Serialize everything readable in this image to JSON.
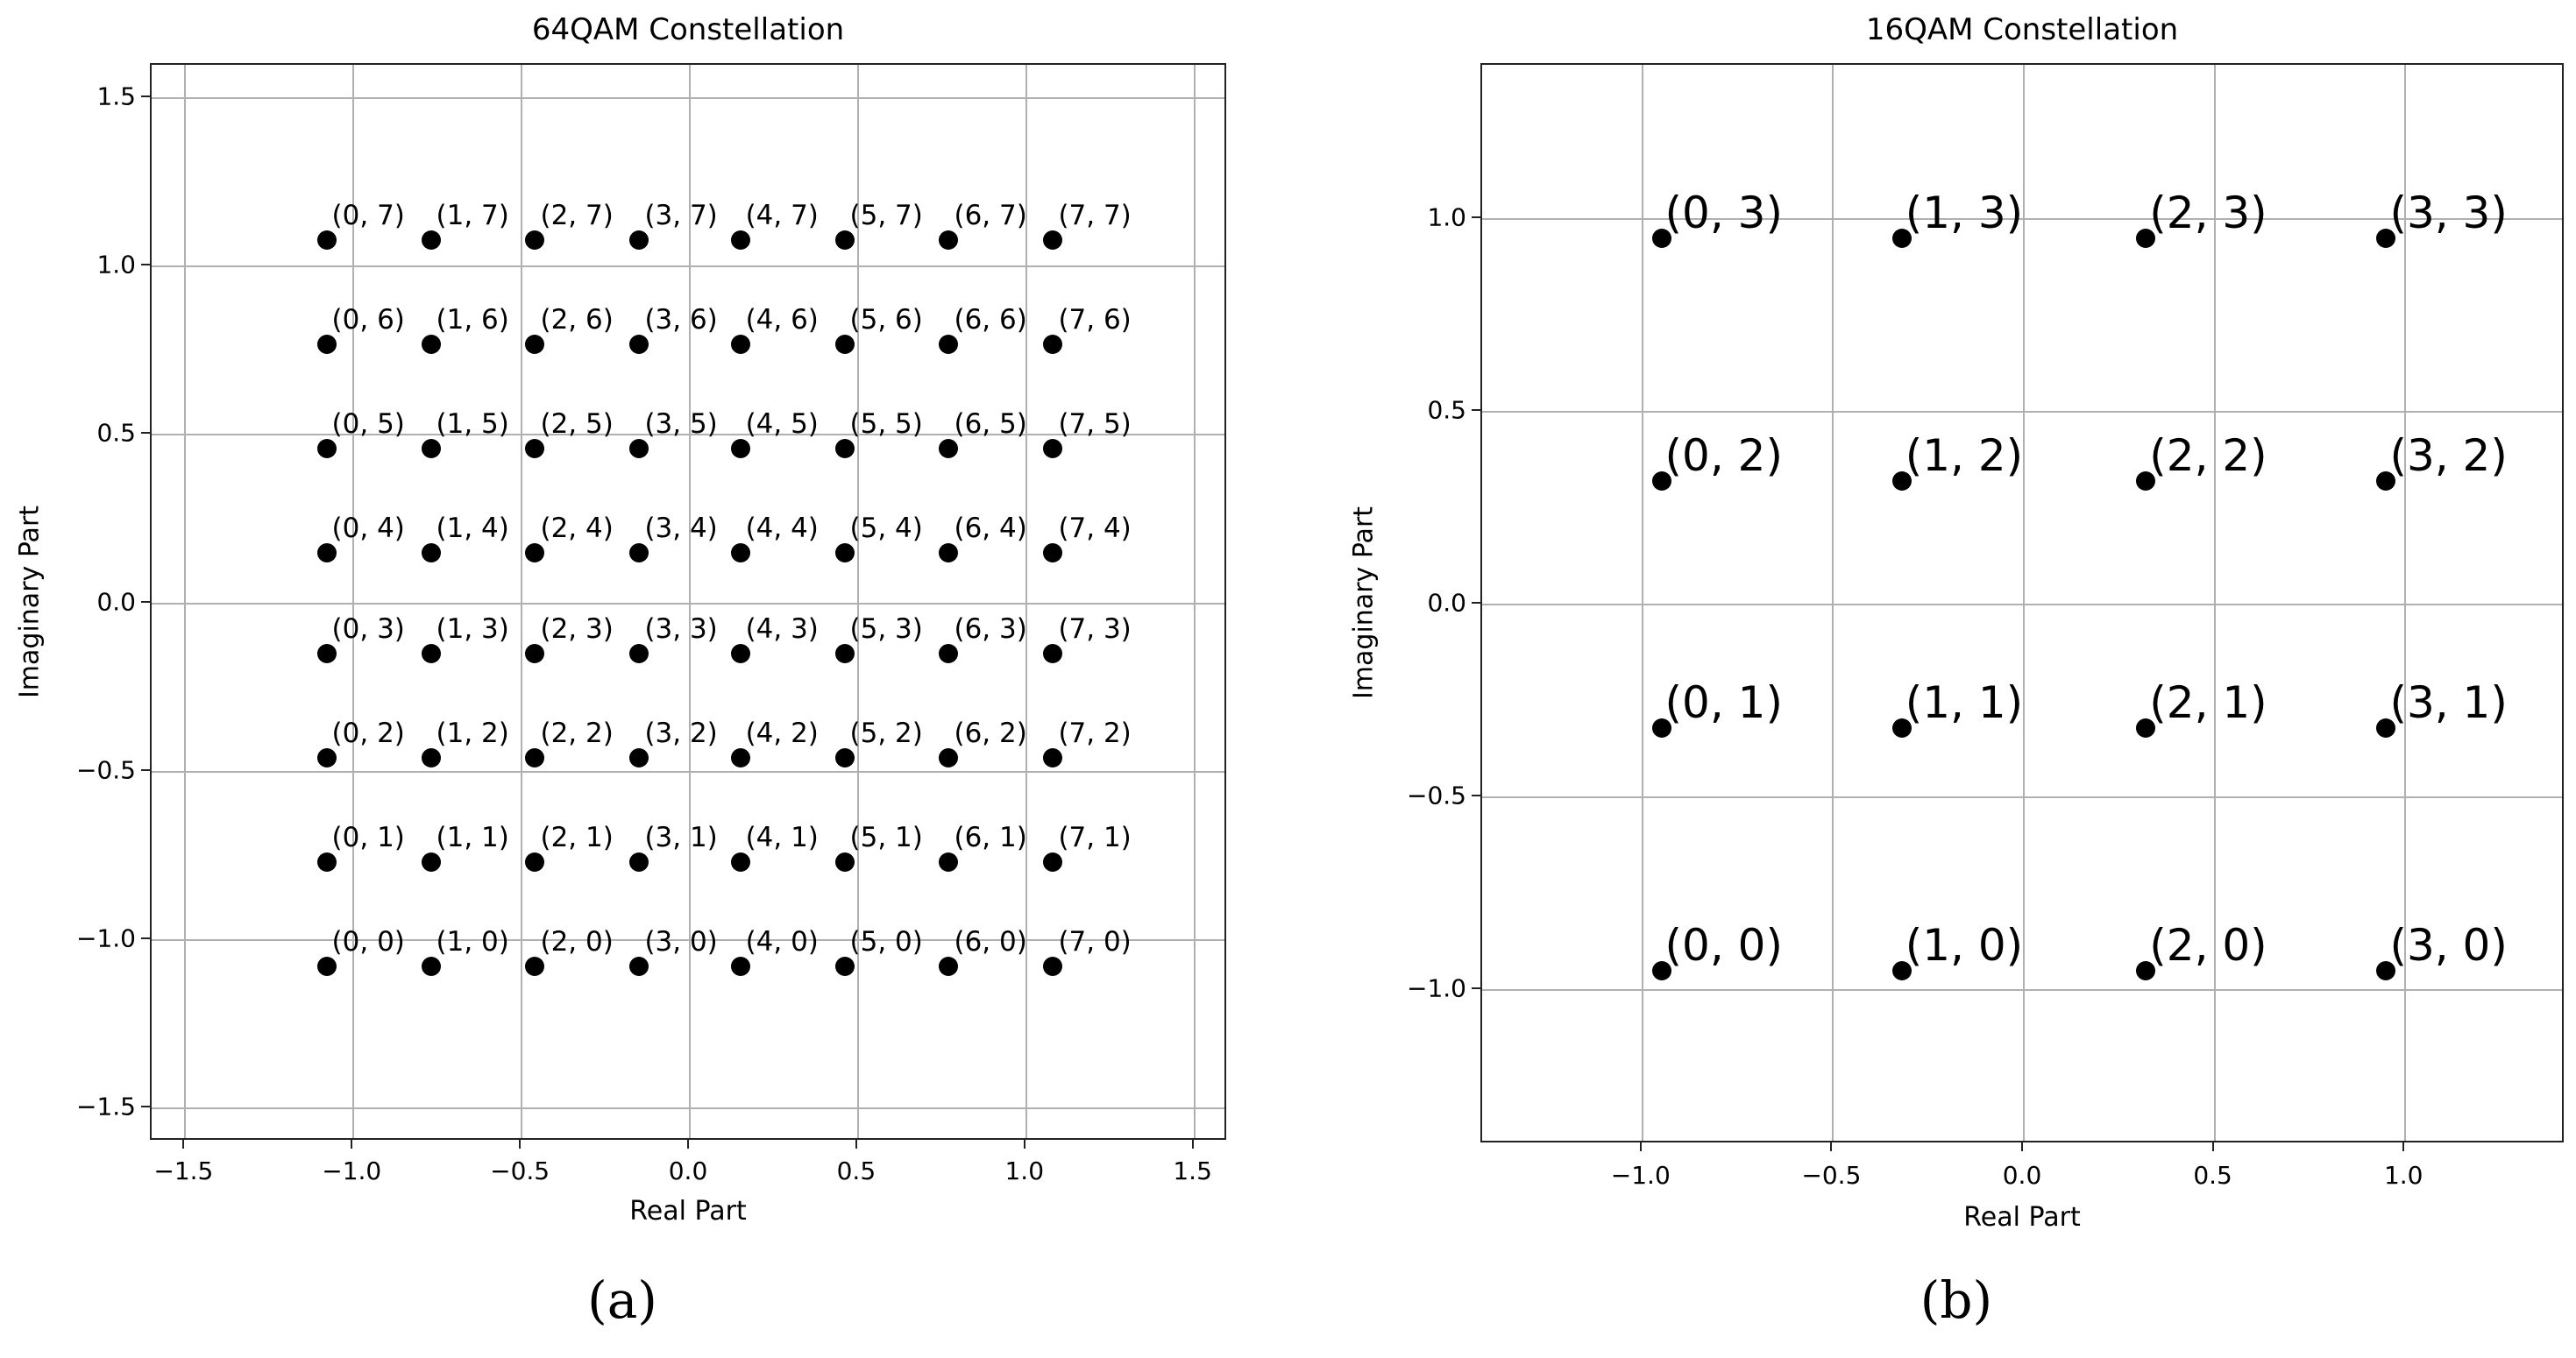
{
  "chart_data": [
    {
      "type": "scatter",
      "panel": "(a)",
      "title": "64QAM Constellation",
      "xlabel": "Real Part",
      "ylabel": "Imaginary Part",
      "xlim": [
        -1.6,
        1.6
      ],
      "ylim": [
        -1.6,
        1.6
      ],
      "xticks": [
        -1.5,
        -1.0,
        -0.5,
        0.0,
        0.5,
        1.0,
        1.5
      ],
      "yticks": [
        -1.5,
        -1.0,
        -0.5,
        0.0,
        0.5,
        1.0,
        1.5
      ],
      "xtick_labels": [
        "−1.5",
        "−1.0",
        "−0.5",
        "0.0",
        "0.5",
        "1.0",
        "1.5"
      ],
      "ytick_labels": [
        "−1.5",
        "−1.0",
        "−0.5",
        "0.0",
        "0.5",
        "1.0",
        "1.5"
      ],
      "grid": true,
      "marker_color": "#000000",
      "levels": [
        -1.08,
        -0.77,
        -0.46,
        -0.15,
        0.15,
        0.46,
        0.77,
        1.08
      ],
      "points_note": "point (i, j) at x = levels[i], y = levels[j]; label text '(i, j)'",
      "order": 8
    },
    {
      "type": "scatter",
      "panel": "(b)",
      "title": "16QAM Constellation",
      "xlabel": "Real Part",
      "ylabel": "Imaginary Part",
      "xlim": [
        -1.42,
        1.42
      ],
      "ylim": [
        -1.4,
        1.4
      ],
      "xticks": [
        -1.0,
        -0.5,
        0.0,
        0.5,
        1.0
      ],
      "yticks": [
        -1.0,
        -0.5,
        0.0,
        0.5,
        1.0
      ],
      "xtick_labels": [
        "−1.0",
        "−0.5",
        "0.0",
        "0.5",
        "1.0"
      ],
      "ytick_labels": [
        "−1.0",
        "−0.5",
        "0.0",
        "0.5",
        "1.0"
      ],
      "grid": true,
      "marker_color": "#000000",
      "levels": [
        -0.95,
        -0.32,
        0.32,
        0.95
      ],
      "points_note": "point (i, j) at x = levels[i], y = levels[j]; label text '(i, j)'",
      "order": 4
    }
  ],
  "captions": [
    "(a)",
    "(b)"
  ],
  "colors": {
    "grid": "#b0b0b0",
    "axes": "#222222",
    "marker": "#000000",
    "background": "#ffffff"
  }
}
